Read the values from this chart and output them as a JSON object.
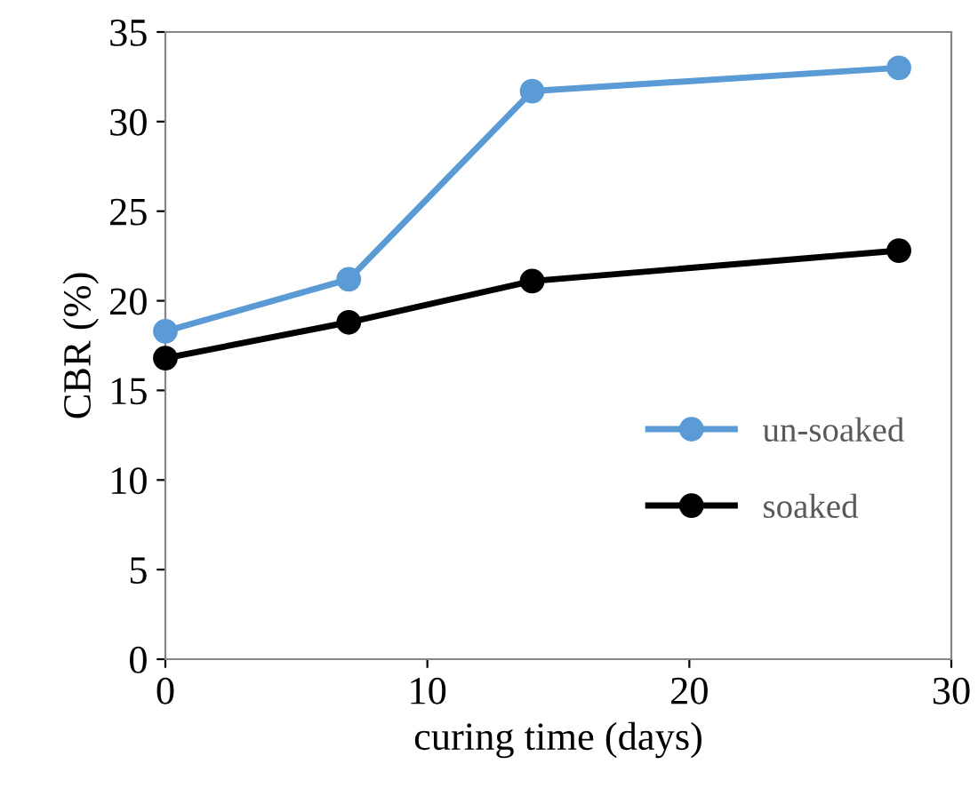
{
  "chart_data": {
    "type": "line",
    "xlabel": "curing time (days)",
    "ylabel": "CBR (%)",
    "x": [
      0,
      7,
      14,
      28
    ],
    "series": [
      {
        "name": "un-soaked",
        "color": "#5b9bd5",
        "values": [
          18.3,
          21.2,
          31.7,
          33
        ]
      },
      {
        "name": "soaked",
        "color": "#000000",
        "values": [
          16.8,
          18.8,
          21.1,
          22.8
        ]
      }
    ],
    "xlim": [
      0,
      30
    ],
    "xticks": [
      0,
      10,
      20,
      30
    ],
    "ylim": [
      0,
      35
    ],
    "yticks": [
      0,
      5,
      10,
      15,
      20,
      25,
      30,
      35
    ],
    "grid": false,
    "legend": "right",
    "marker": "circle",
    "line_style": "solid"
  }
}
